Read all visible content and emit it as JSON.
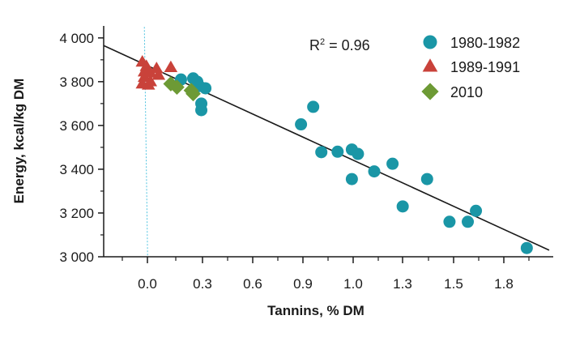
{
  "chart_data": {
    "type": "scatter",
    "xlabel": "Tannins, % DM",
    "ylabel": "Energy, kcal/kg DM",
    "xlim": [
      -0.21,
      2.0
    ],
    "ylim": [
      3000,
      4040
    ],
    "xticks": [
      0.0,
      0.3,
      0.6,
      0.9,
      1.0,
      1.3,
      1.5,
      1.8
    ],
    "yticks": [
      3000,
      3200,
      3400,
      3600,
      3800,
      4000
    ],
    "ytick_labels": [
      "3 000",
      "3 200",
      "3 400",
      "3 600",
      "3 800",
      "4 000"
    ],
    "xtick_labels": [
      "0.0",
      "0.3",
      "0.6",
      "0.9",
      "1.0",
      "1.3",
      "1.5",
      "1.8"
    ],
    "annotation": {
      "r2_label": "R",
      "r2_sup": "2",
      "r2_value": " = 0.96"
    },
    "legend_placement": "top-right",
    "grid": false,
    "series": [
      {
        "name": "1980-1982",
        "marker": "circle",
        "color": "#1a96a6",
        "points": [
          [
            0.17,
            3810
          ],
          [
            0.23,
            3815
          ],
          [
            0.25,
            3800
          ],
          [
            0.26,
            3780
          ],
          [
            0.29,
            3770
          ],
          [
            0.27,
            3700
          ],
          [
            0.27,
            3670
          ],
          [
            0.76,
            3605
          ],
          [
            0.82,
            3685
          ],
          [
            0.86,
            3478
          ],
          [
            0.94,
            3480
          ],
          [
            1.01,
            3490
          ],
          [
            1.04,
            3470
          ],
          [
            1.01,
            3355
          ],
          [
            1.12,
            3390
          ],
          [
            1.21,
            3425
          ],
          [
            1.26,
            3230
          ],
          [
            1.38,
            3355
          ],
          [
            1.49,
            3160
          ],
          [
            1.58,
            3160
          ],
          [
            1.62,
            3210
          ],
          [
            1.87,
            3040
          ]
        ]
      },
      {
        "name": "1989-1991",
        "marker": "triangle",
        "color": "#c9423a",
        "points": [
          [
            -0.02,
            3890
          ],
          [
            0.0,
            3870
          ],
          [
            0.05,
            3860
          ],
          [
            0.12,
            3865
          ],
          [
            -0.01,
            3845
          ],
          [
            0.02,
            3840
          ],
          [
            0.06,
            3830
          ],
          [
            -0.01,
            3820
          ],
          [
            0.02,
            3800
          ],
          [
            -0.02,
            3790
          ],
          [
            0.01,
            3785
          ]
        ]
      },
      {
        "name": "2010",
        "marker": "diamond",
        "color": "#6d9a35",
        "points": [
          [
            0.12,
            3790
          ],
          [
            0.15,
            3775
          ],
          [
            0.22,
            3760
          ],
          [
            0.23,
            3745
          ]
        ]
      }
    ],
    "regression_line": {
      "x": [
        -0.21,
        1.98
      ],
      "y": [
        3965,
        3030
      ],
      "color": "#1a1a1a"
    },
    "reference_line": {
      "x": [
        -0.01,
        -0.01
      ],
      "y": [
        3000,
        4050
      ],
      "style": "dotted",
      "color": "#4fc3e0"
    }
  }
}
